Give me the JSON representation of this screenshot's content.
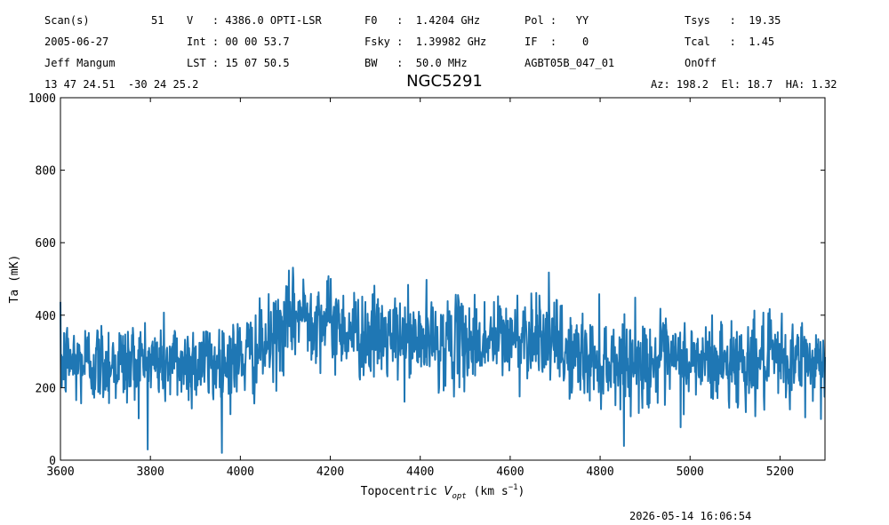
{
  "header": {
    "col1": [
      "Scan(s)",
      "2005-06-27",
      "Jeff Mangum",
      "13 47 24.51  -30 24 25.2"
    ],
    "scan_number": "51",
    "col2": [
      "V   : 4386.0 OPTI-LSR",
      "Int : 00 00 53.7",
      "LST : 15 07 50.5"
    ],
    "col3": [
      "F0   :  1.4204 GHz",
      "Fsky :  1.39982 GHz",
      "BW   :  50.0 MHz"
    ],
    "col4": [
      "Pol :   YY",
      "IF  :    0",
      "AGBT05B_047_01"
    ],
    "col5": [
      "Tsys   :  19.35",
      "Tcal   :  1.45",
      "OnOff"
    ],
    "az_el_ha": "Az: 198.2  El: 18.7  HA: 1.32",
    "title": "NGC5291"
  },
  "timestamp": "2026-05-14 16:06:54",
  "chart_data": {
    "type": "line",
    "title": "NGC5291",
    "xlabel": "Topocentric V_opt (km s^-1)",
    "ylabel": "Ta (mK)",
    "xlim": [
      3600,
      5300
    ],
    "ylim": [
      0,
      1000
    ],
    "xticks": [
      3600,
      3800,
      4000,
      4200,
      4400,
      4600,
      4800,
      5000,
      5200
    ],
    "yticks": [
      0,
      200,
      400,
      600,
      800,
      1000
    ],
    "grid": false,
    "line_color": "#1f77b4",
    "series": [
      {
        "x": [
          3600,
          3620,
          3640,
          3660,
          3680,
          3700,
          3720,
          3740,
          3760,
          3780,
          3800,
          3820,
          3840,
          3860,
          3880,
          3900,
          3920,
          3940,
          3960,
          3980,
          4000,
          4020,
          4040,
          4060,
          4080,
          4100,
          4120,
          4140,
          4160,
          4180,
          4200,
          4220,
          4240,
          4260,
          4280,
          4300,
          4320,
          4340,
          4360,
          4380,
          4400,
          4420,
          4440,
          4460,
          4480,
          4500,
          4520,
          4540,
          4560,
          4580,
          4600,
          4620,
          4640,
          4660,
          4680,
          4700,
          4720,
          4740,
          4760,
          4780,
          4800,
          4820,
          4840,
          4860,
          4880,
          4900,
          4920,
          4940,
          4960,
          4980,
          5000,
          5020,
          5040,
          5060,
          5080,
          5100,
          5120,
          5140,
          5160,
          5180,
          5200,
          5220,
          5240,
          5260,
          5280,
          5300
        ],
        "y": [
          270,
          275,
          265,
          272,
          268,
          270,
          274,
          266,
          271,
          269,
          273,
          270,
          267,
          272,
          268,
          274,
          270,
          266,
          272,
          275,
          280,
          290,
          300,
          315,
          340,
          370,
          395,
          405,
          400,
          390,
          380,
          370,
          360,
          350,
          345,
          340,
          340,
          335,
          335,
          330,
          330,
          330,
          325,
          330,
          325,
          330,
          330,
          325,
          330,
          335,
          335,
          340,
          350,
          360,
          345,
          320,
          300,
          290,
          285,
          280,
          278,
          275,
          272,
          270,
          274,
          268,
          272,
          270,
          266,
          271,
          268,
          274,
          270,
          267,
          272,
          269,
          273,
          268,
          271,
          270,
          272,
          268,
          274,
          270,
          272,
          270
        ]
      }
    ],
    "noise_rms_mK": 60
  }
}
